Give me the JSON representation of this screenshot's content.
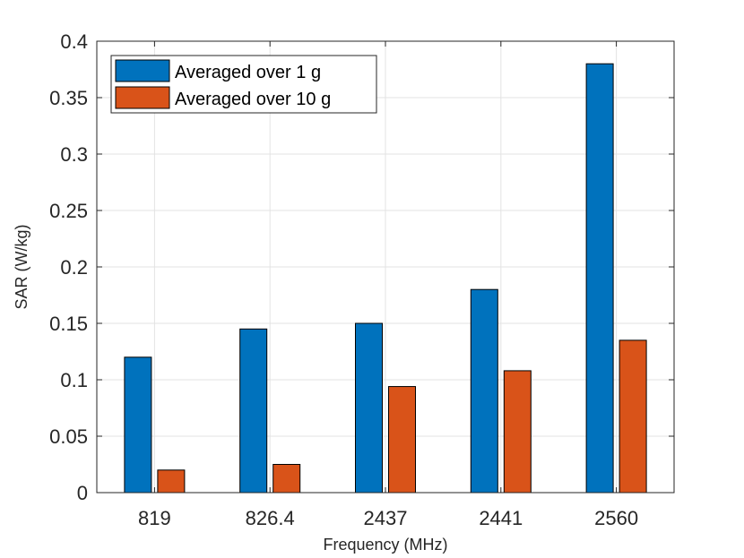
{
  "chart_data": {
    "type": "bar",
    "title": "",
    "xlabel": "Frequency (MHz)",
    "ylabel": "SAR (W/kg)",
    "categories": [
      "819",
      "826.4",
      "2437",
      "2441",
      "2560"
    ],
    "ylim": [
      0,
      0.4
    ],
    "yticks": [
      0,
      0.05,
      0.1,
      0.15,
      0.2,
      0.25,
      0.3,
      0.35,
      0.4
    ],
    "ytick_labels": [
      "0",
      "0.05",
      "0.1",
      "0.15",
      "0.2",
      "0.25",
      "0.3",
      "0.35",
      "0.4"
    ],
    "grid": true,
    "legend_location": "top-left",
    "series": [
      {
        "name": "Averaged over 1 g",
        "color": "#0072BD",
        "values": [
          0.12,
          0.145,
          0.15,
          0.18,
          0.38
        ]
      },
      {
        "name": "Averaged over 10 g",
        "color": "#D95319",
        "values": [
          0.02,
          0.025,
          0.094,
          0.108,
          0.135
        ]
      }
    ]
  }
}
